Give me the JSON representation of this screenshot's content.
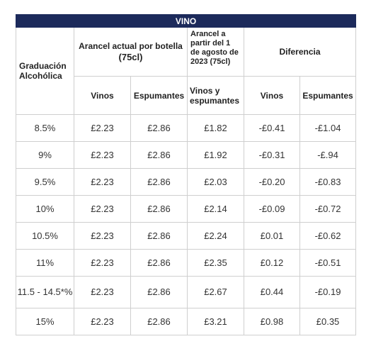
{
  "table": {
    "title": "VINO",
    "headers": {
      "graduacion": "Graduación Alcohólica",
      "arancel_actual_line1": "Arancel actual por botella",
      "arancel_actual_line2": "(75cl)",
      "arancel_partir": "Arancel a partir del 1 de agosto de 2023 (75cl)",
      "diferencia": "Diferencia",
      "vinos": "Vinos",
      "espumantes": "Espumantes",
      "vinos_y_espumantes": "Vinos y espumantes",
      "diff_vinos": "Vinos",
      "diff_espumantes": "Espumantes"
    },
    "rows": [
      {
        "grad": "8.5%",
        "vinos": "£2.23",
        "espumantes": "£2.86",
        "nuevo": "£1.82",
        "diff_vinos": "-£0.41",
        "diff_esp": "-£1.04"
      },
      {
        "grad": "9%",
        "vinos": "£2.23",
        "espumantes": "£2.86",
        "nuevo": "£1.92",
        "diff_vinos": "-£0.31",
        "diff_esp": "-£.94"
      },
      {
        "grad": "9.5%",
        "vinos": "£2.23",
        "espumantes": "£2.86",
        "nuevo": "£2.03",
        "diff_vinos": "-£0.20",
        "diff_esp": "-£0.83"
      },
      {
        "grad": "10%",
        "vinos": "£2.23",
        "espumantes": "£2.86",
        "nuevo": "£2.14",
        "diff_vinos": "-£0.09",
        "diff_esp": "-£0.72"
      },
      {
        "grad": "10.5%",
        "vinos": "£2.23",
        "espumantes": "£2.86",
        "nuevo": "£2.24",
        "diff_vinos": "£0.01",
        "diff_esp": "-£0.62"
      },
      {
        "grad": "11%",
        "vinos": "£2.23",
        "espumantes": "£2.86",
        "nuevo": "£2.35",
        "diff_vinos": "£0.12",
        "diff_esp": "-£0.51"
      },
      {
        "grad": "11.5 - 14.5*%",
        "vinos": "£2.23",
        "espumantes": "£2.86",
        "nuevo": "£2.67",
        "diff_vinos": "£0.44",
        "diff_esp": "-£0.19"
      },
      {
        "grad": "15%",
        "vinos": "£2.23",
        "espumantes": "£2.86",
        "nuevo": "£3.21",
        "diff_vinos": "£0.98",
        "diff_esp": "£0.35"
      }
    ]
  },
  "colors": {
    "header_bg": "#1c2a5b",
    "negative": "#2f9a3a",
    "positive": "#c62828"
  }
}
